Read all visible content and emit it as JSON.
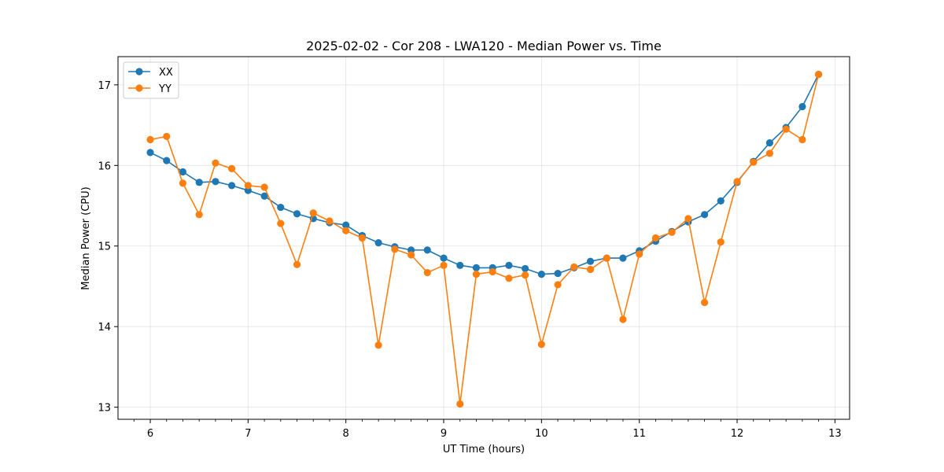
{
  "chart_data": {
    "type": "line",
    "title": "2025-02-02 - Cor 208 - LWA120 - Median Power vs. Time",
    "xlabel": "UT Time (hours)",
    "ylabel": "Median Power (CPU)",
    "xlim": [
      5.67,
      13.15
    ],
    "ylim": [
      12.85,
      17.35
    ],
    "xticks": [
      6,
      7,
      8,
      9,
      10,
      11,
      12,
      13
    ],
    "yticks": [
      13,
      14,
      15,
      16,
      17
    ],
    "grid": true,
    "legend_position": "top-left",
    "x": [
      6.0,
      6.167,
      6.333,
      6.5,
      6.667,
      6.833,
      7.0,
      7.167,
      7.333,
      7.5,
      7.667,
      7.833,
      8.0,
      8.167,
      8.333,
      8.5,
      8.667,
      8.833,
      9.0,
      9.167,
      9.333,
      9.5,
      9.667,
      9.833,
      10.0,
      10.167,
      10.333,
      10.5,
      10.667,
      10.833,
      11.0,
      11.167,
      11.333,
      11.5,
      11.667,
      11.833,
      12.0,
      12.167,
      12.333,
      12.5,
      12.667,
      12.833
    ],
    "series": [
      {
        "name": "XX",
        "color": "#1f77b4",
        "values": [
          16.16,
          16.06,
          15.92,
          15.79,
          15.8,
          15.75,
          15.69,
          15.62,
          15.48,
          15.4,
          15.34,
          15.29,
          15.26,
          15.13,
          15.04,
          14.99,
          14.95,
          14.95,
          14.85,
          14.76,
          14.73,
          14.73,
          14.76,
          14.72,
          14.65,
          14.66,
          14.73,
          14.81,
          14.85,
          14.85,
          14.94,
          15.06,
          15.18,
          15.3,
          15.39,
          15.56,
          15.79,
          16.05,
          16.28,
          16.47,
          16.73,
          17.13
        ]
      },
      {
        "name": "YY",
        "color": "#ff7f0e",
        "values": [
          16.32,
          16.36,
          15.78,
          15.39,
          16.03,
          15.96,
          15.75,
          15.73,
          15.28,
          14.77,
          15.41,
          15.31,
          15.19,
          15.1,
          13.77,
          14.96,
          14.89,
          14.67,
          14.76,
          13.04,
          14.65,
          14.68,
          14.6,
          14.64,
          13.78,
          14.52,
          14.74,
          14.71,
          14.85,
          14.09,
          14.9,
          15.1,
          15.17,
          15.34,
          14.3,
          15.05,
          15.8,
          16.04,
          16.15,
          16.45,
          16.32,
          17.13
        ]
      }
    ]
  }
}
